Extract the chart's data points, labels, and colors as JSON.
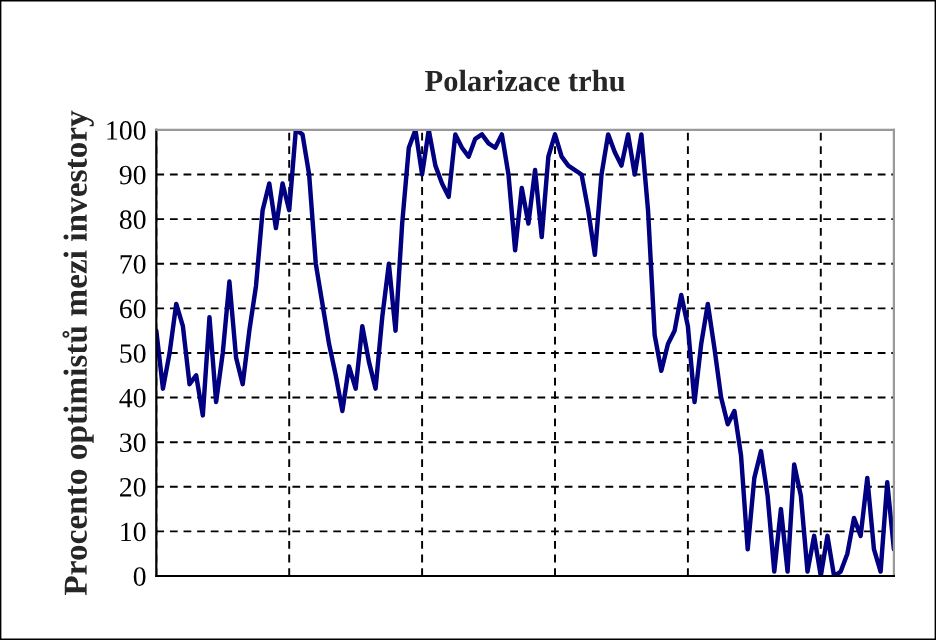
{
  "chart_data": {
    "type": "line",
    "title": "Polarizace trhu",
    "ylabel": "Procento optimistů mezi investory",
    "categories": [
      null,
      null,
      null,
      null,
      null,
      null,
      null,
      null,
      null,
      null,
      null,
      null,
      null,
      null,
      null,
      null,
      null,
      null,
      null,
      null,
      null,
      null,
      null,
      null,
      null,
      null,
      null,
      null,
      null,
      null,
      null,
      null,
      null,
      null,
      null,
      null,
      null,
      null,
      null,
      null,
      null,
      null,
      null,
      null,
      null,
      null,
      null,
      null,
      null,
      null,
      null,
      null,
      null,
      null,
      null,
      null,
      null,
      null,
      null,
      null,
      null,
      null,
      null,
      null,
      null,
      null,
      null,
      null,
      null,
      null,
      null,
      null,
      null,
      null,
      null,
      null,
      null,
      null,
      null,
      null,
      null,
      null,
      null,
      null,
      null,
      null,
      null,
      null,
      null,
      null,
      null,
      null,
      null,
      null,
      null,
      null,
      null,
      null,
      null,
      null,
      null,
      null,
      null,
      null,
      null,
      null,
      null,
      null,
      null,
      null,
      null,
      null
    ],
    "ylim": [
      0,
      100
    ],
    "yticks": [
      0,
      10,
      20,
      30,
      40,
      50,
      60,
      70,
      80,
      90,
      100
    ],
    "grid": true,
    "line_style": "solid",
    "series": [
      {
        "color": "#000080",
        "values": [
          55,
          42,
          50,
          61,
          56,
          43,
          45,
          36,
          58,
          39,
          50,
          66,
          49,
          43,
          55,
          65,
          82,
          88,
          78,
          88,
          82,
          100,
          99,
          90,
          70,
          61,
          52,
          45,
          37,
          47,
          42,
          56,
          48,
          42,
          58,
          70,
          55,
          79,
          96,
          100,
          90,
          100,
          92,
          88,
          85,
          99,
          96,
          94,
          98,
          99,
          97,
          96,
          99,
          90,
          73,
          87,
          79,
          91,
          76,
          94,
          99,
          94,
          92,
          91,
          90,
          82,
          72,
          90,
          99,
          95,
          92,
          99,
          90,
          99,
          82,
          54,
          46,
          52,
          55,
          63,
          56,
          39,
          52,
          61,
          51,
          40,
          34,
          37,
          27,
          6,
          22,
          28,
          18,
          1,
          15,
          1,
          25,
          18,
          1,
          9,
          0,
          9,
          0,
          1,
          5,
          13,
          9,
          22,
          6,
          1,
          21,
          6
        ]
      }
    ]
  }
}
